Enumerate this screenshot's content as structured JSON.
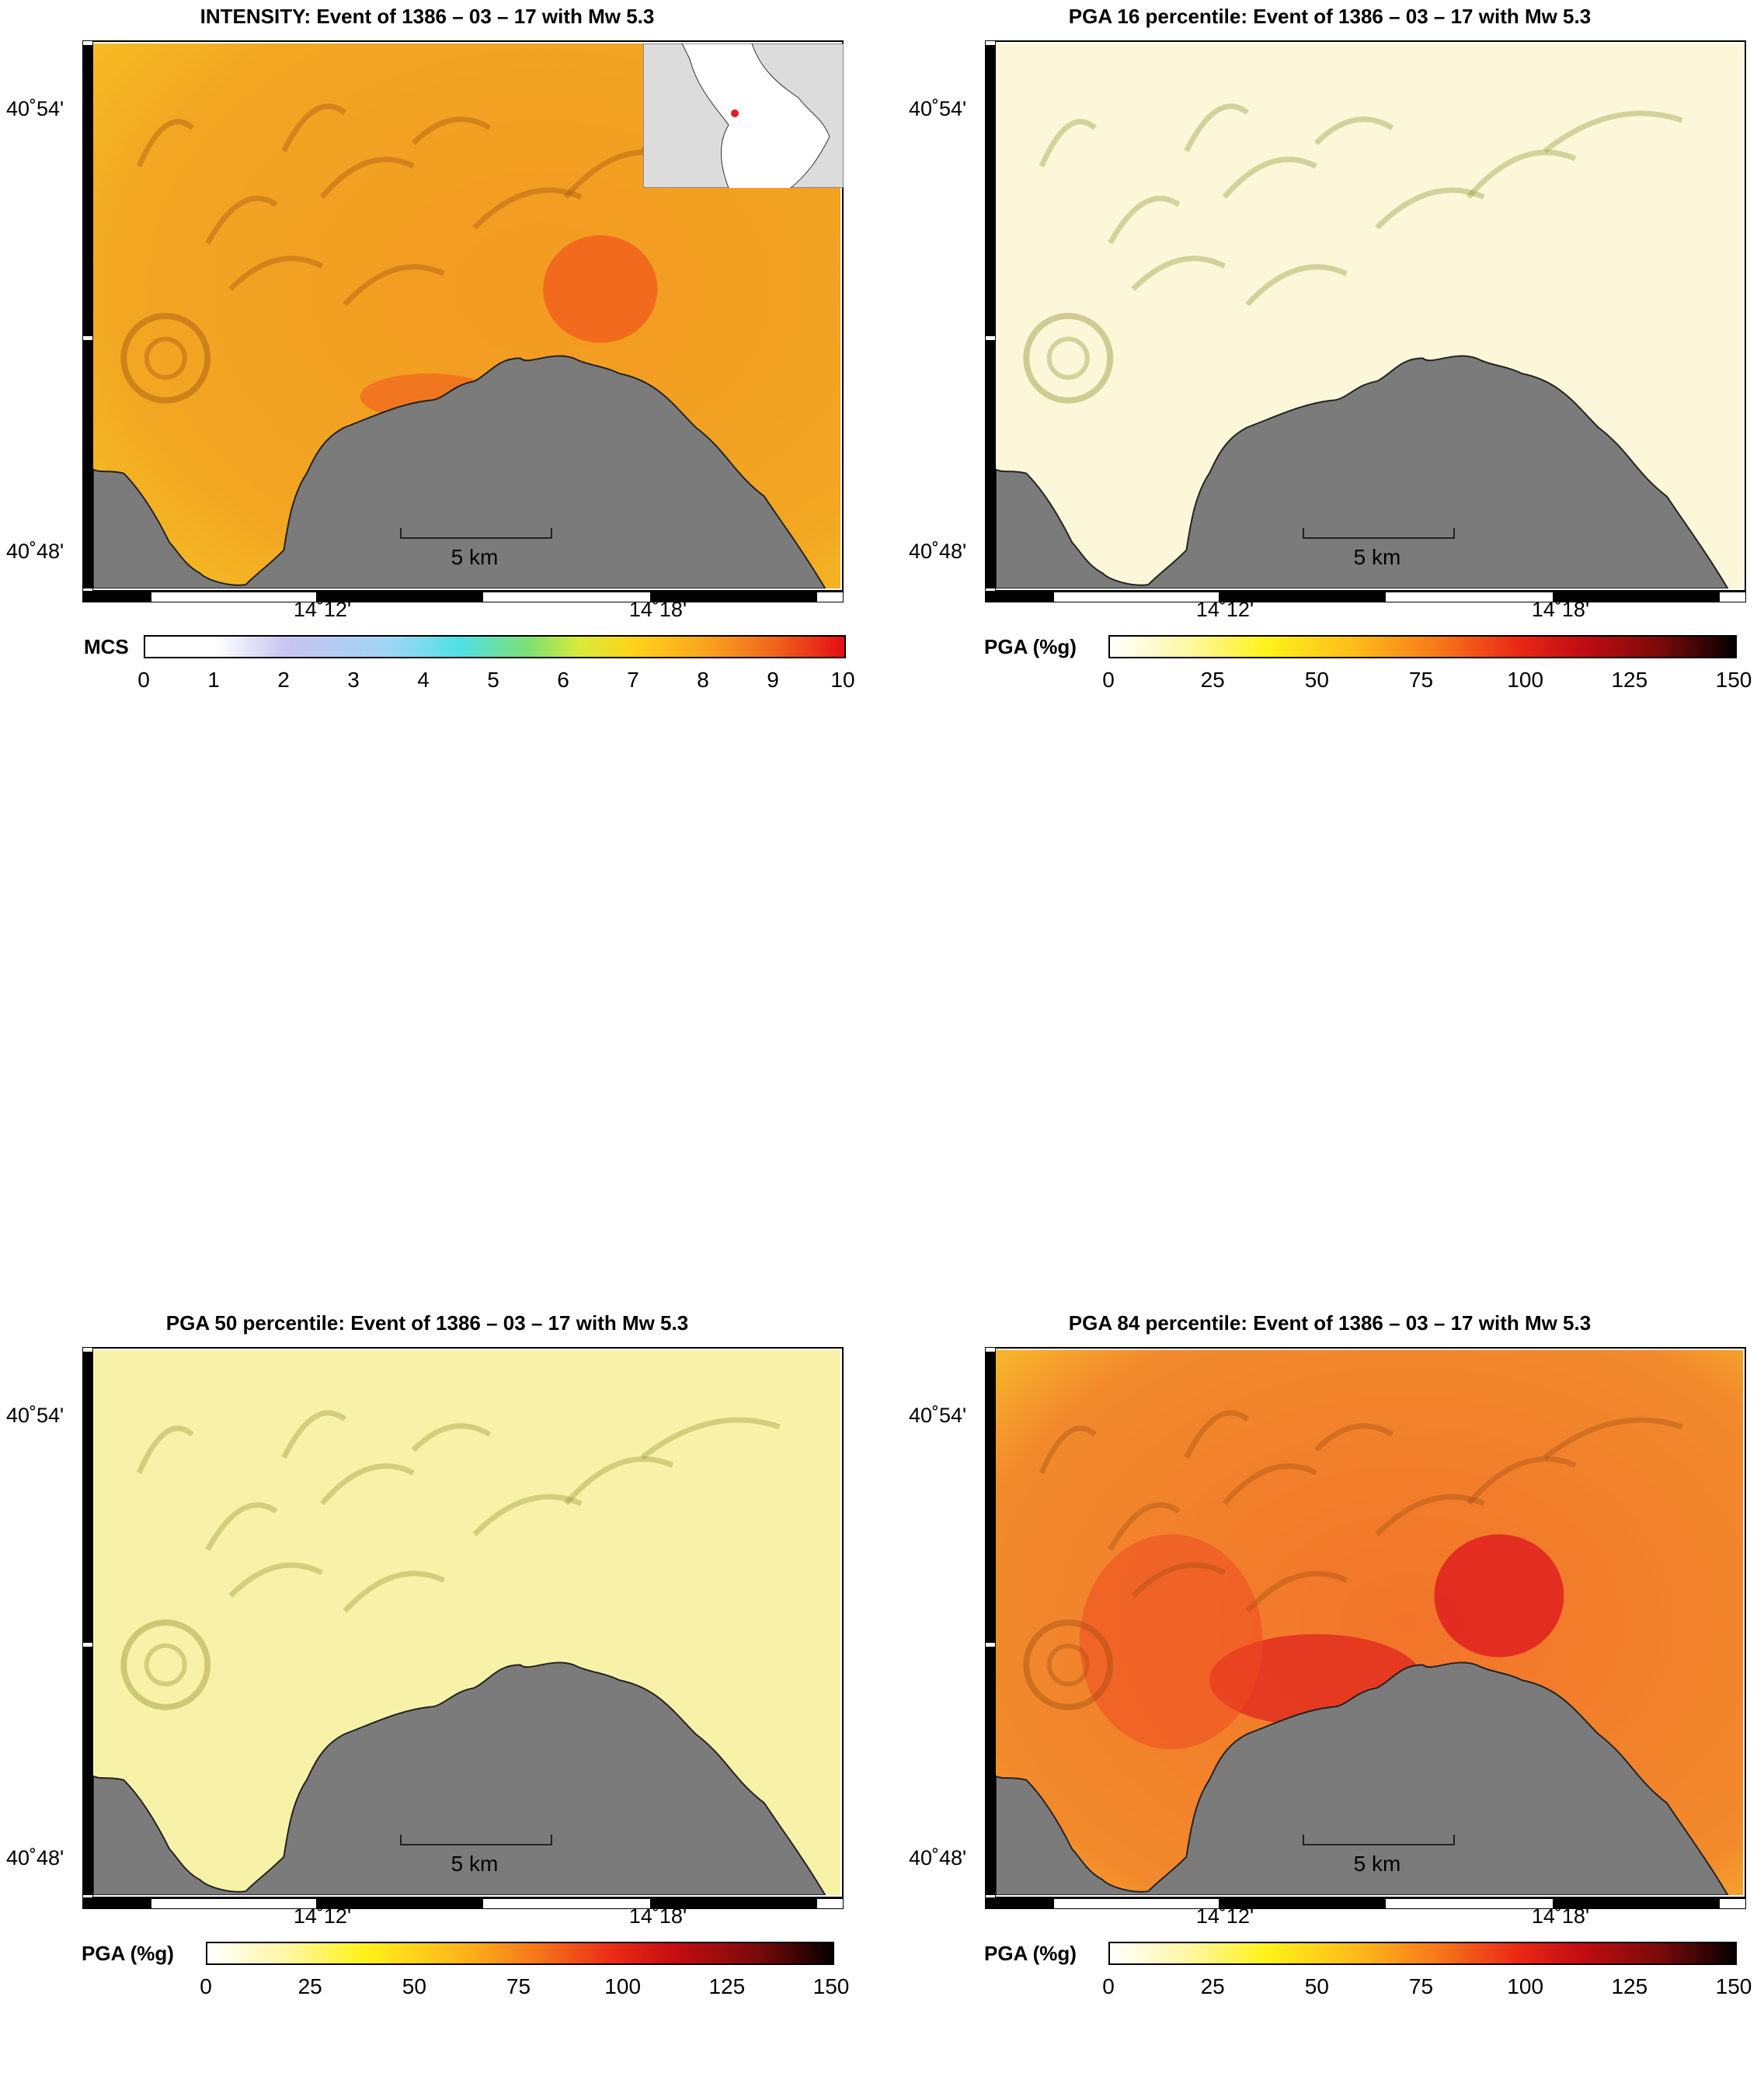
{
  "panels": [
    {
      "title": "INTENSITY: Event of 1386 – 03 – 17 with Mw 5.3",
      "scheme": "intensity",
      "colorbar": {
        "label": "MCS",
        "ticks": [
          "0",
          "1",
          "2",
          "3",
          "4",
          "5",
          "6",
          "7",
          "8",
          "9",
          "10"
        ]
      },
      "has_inset": true
    },
    {
      "title": "PGA 16 percentile: Event of 1386 – 03 – 17 with Mw 5.3",
      "scheme": "pga16",
      "colorbar": {
        "label": "PGA (%g)",
        "ticks": [
          "0",
          "25",
          "50",
          "75",
          "100",
          "125",
          "150"
        ]
      },
      "has_inset": false
    },
    {
      "title": "PGA 50 percentile: Event of 1386 – 03 – 17 with Mw 5.3",
      "scheme": "pga50",
      "colorbar": {
        "label": "PGA (%g)",
        "ticks": [
          "0",
          "25",
          "50",
          "75",
          "100",
          "125",
          "150"
        ]
      },
      "has_inset": false
    },
    {
      "title": "PGA 84 percentile: Event of 1386 – 03 – 17 with Mw 5.3",
      "scheme": "pga84",
      "colorbar": {
        "label": "PGA (%g)",
        "ticks": [
          "0",
          "25",
          "50",
          "75",
          "100",
          "125",
          "150"
        ]
      },
      "has_inset": false
    }
  ],
  "axes": {
    "lat_labels": [
      "40˚54'",
      "40˚48'"
    ],
    "lon_labels": [
      "14˚12'",
      "14˚18'"
    ]
  },
  "scale_bar": {
    "label": "5 km"
  },
  "colors": {
    "sea": "#7b7b7b",
    "intensity_base": "#f2a622",
    "intensity_hot": "#f05a1e",
    "pga16_base": "#fbf7d8",
    "pga50_base": "#f8f2a8",
    "pga84_base": "#f28a2c",
    "pga84_hot": "#e02020"
  }
}
